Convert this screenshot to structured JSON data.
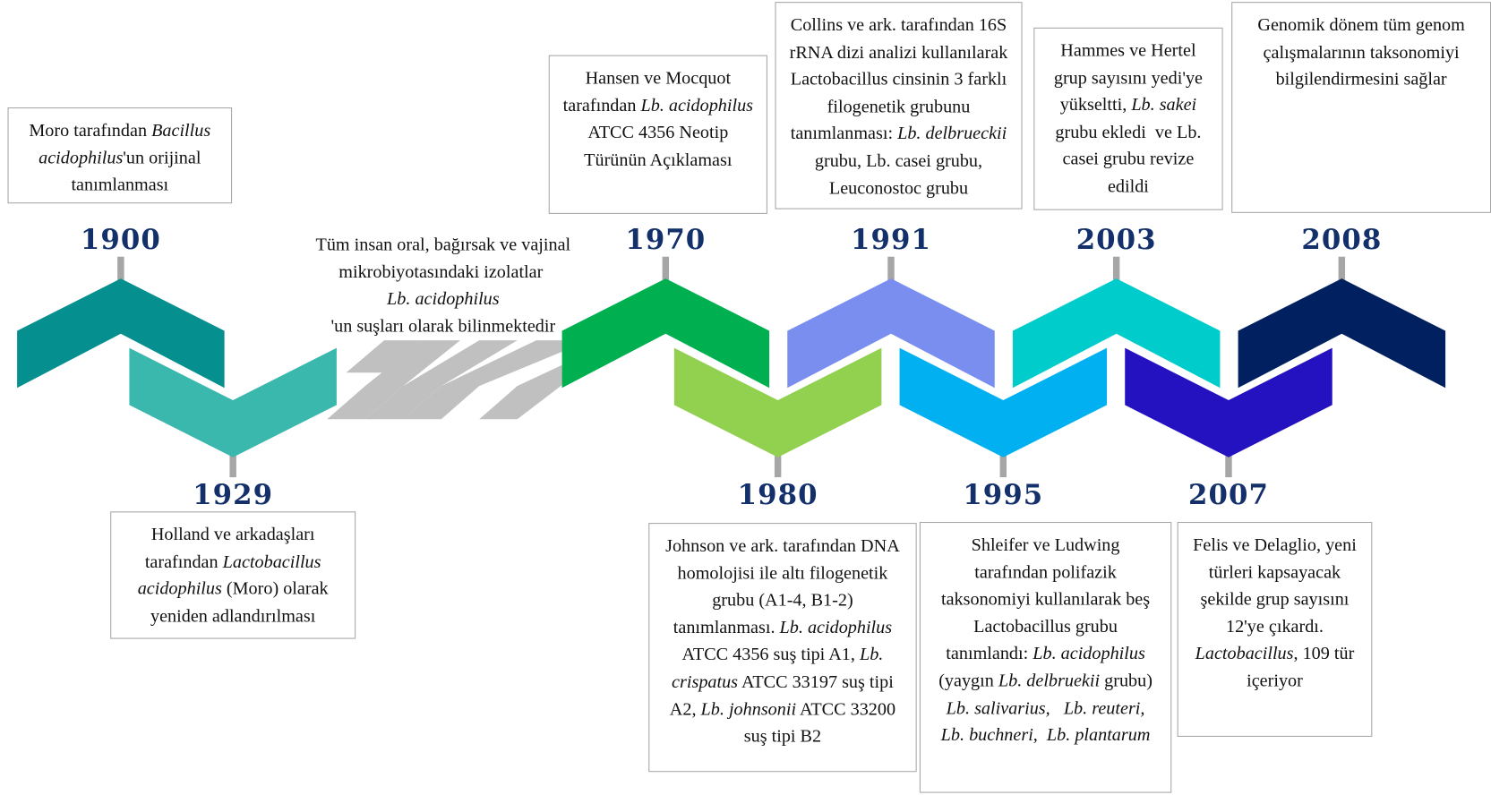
{
  "events": [
    {
      "year": "1900",
      "description": [
        {
          "text": "Moro tarafından "
        },
        {
          "text": "Bacillus acidophilus",
          "italic": true
        },
        {
          "text": "'un orijinal tanımlanması"
        }
      ]
    },
    {
      "year": "1929",
      "description": [
        {
          "text": "Holland ve arkadaşları tarafından "
        },
        {
          "text": "Lactobacillus acidophilus",
          "italic": true
        },
        {
          "text": " (Moro) olarak yeniden adlandırılması"
        }
      ]
    },
    {
      "year": "1970",
      "description": [
        {
          "text": "Hansen ve Mocquot tarafından "
        },
        {
          "text": "Lb. acidophilus",
          "italic": true
        },
        {
          "text": " ATCC 4356 Neotip Türünün Açıklaması"
        }
      ]
    },
    {
      "year": "1980",
      "description": [
        {
          "text": "Johnson ve ark. tarafından DNA homolojisi ile altı filogenetik grubu (A1-4, B1-2) tanımlanması. "
        },
        {
          "text": "Lb. acidophilus",
          "italic": true
        },
        {
          "text": " ATCC 4356 suş tipi A1, "
        },
        {
          "text": "Lb. crispatus",
          "italic": true
        },
        {
          "text": " ATCC 33197 suş tipi A2, "
        },
        {
          "text": "Lb. johnsonii",
          "italic": true
        },
        {
          "text": " ATCC 33200 suş tipi B2"
        }
      ]
    },
    {
      "year": "1991",
      "description": [
        {
          "text": "Collins ve ark. tarafından 16S rRNA dizi analizi kullanılarak Lactobacillus cinsinin 3 farklı filogenetik grubunu tanımlanması: "
        },
        {
          "text": "Lb. delbrueckii",
          "italic": true
        },
        {
          "text": " grubu, Lb. casei grubu, Leuconostoc grubu"
        }
      ]
    },
    {
      "year": "1995",
      "description": [
        {
          "text": "Shleifer ve Ludwing tarafından polifazik taksonomiyi kullanılarak beş Lactobacillus grubu tanımlandı: "
        },
        {
          "text": "Lb. acidophilus",
          "italic": true
        },
        {
          "text": " (yaygın "
        },
        {
          "text": "Lb. delbruekii",
          "italic": true
        },
        {
          "text": " grubu) "
        },
        {
          "text": "Lb. salivarius,   Lb. reuteri, Lb. buchneri,  Lb. plantarum",
          "italic": true
        }
      ]
    },
    {
      "year": "2003",
      "description": [
        {
          "text": "Hammes ve Hertel grup sayısını yedi'ye yükseltti, "
        },
        {
          "text": "Lb. sakei",
          "italic": true
        },
        {
          "text": " grubu ekledi  ve Lb. casei grubu revize edildi"
        }
      ]
    },
    {
      "year": "2007",
      "description": [
        {
          "text": "Felis ve Delaglio, yeni türleri kapsayacak şekilde grup sayısını 12'ye çıkardı. "
        },
        {
          "text": "Lactobacillus",
          "italic": true
        },
        {
          "text": ", 109 tür içeriyor"
        }
      ]
    },
    {
      "year": "2008",
      "description": [
        {
          "text": "Genomik dönem tüm genom çalışmalarının taksonomiyi bilgilendirmesini sağlar"
        }
      ]
    }
  ],
  "note": [
    {
      "text": "Tüm insan oral, bağırsak ve vajinal mikrobiyotasındaki izolatlar "
    },
    {
      "text": "Lb. acidophilus",
      "italic": true
    },
    {
      "text": "'un suşları olarak bilinmektedir"
    }
  ]
}
